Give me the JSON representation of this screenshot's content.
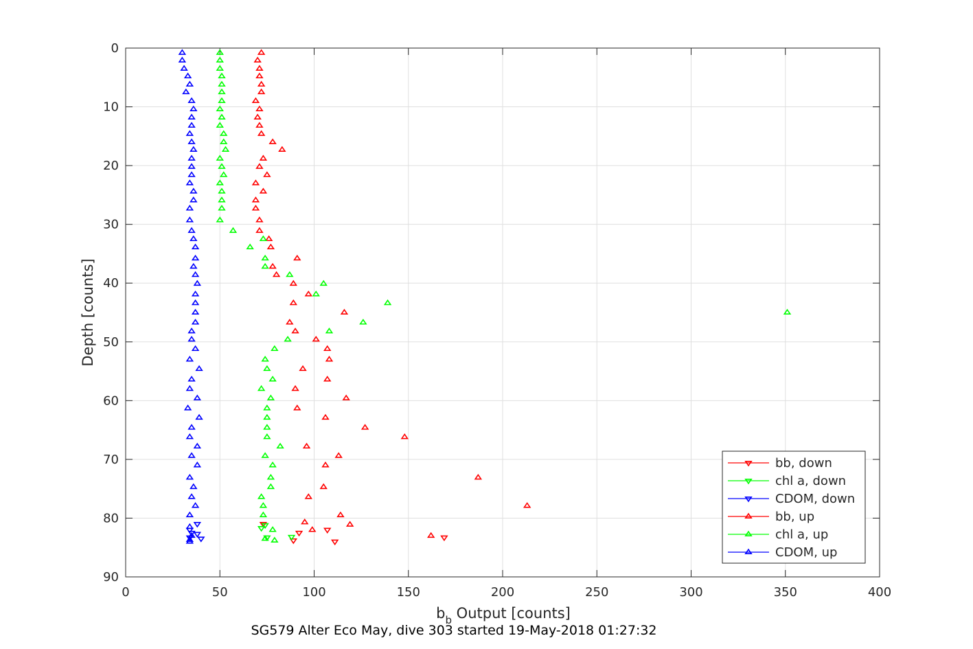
{
  "chart_data": {
    "type": "scatter",
    "title": "SG579 Alter Eco May, dive 303 started 19-May-2018 01:27:32",
    "xlabel_main": "b",
    "xlabel_sub": "b",
    "xlabel_rest": " Output [counts]",
    "ylabel": "Depth [counts]",
    "xlim": [
      0,
      400
    ],
    "ylim": [
      0,
      90
    ],
    "y_reversed": true,
    "x_ticks": [
      0,
      50,
      100,
      150,
      200,
      250,
      300,
      350,
      400
    ],
    "y_ticks": [
      0,
      10,
      20,
      30,
      40,
      50,
      60,
      70,
      80,
      90
    ],
    "grid": true,
    "legend_position": "bottom-right",
    "series": [
      {
        "name": "bb, down",
        "color": "#ff0000",
        "marker": "triangle-down",
        "points": [
          [
            89,
            83.8
          ],
          [
            111,
            84.0
          ],
          [
            107,
            82.0
          ],
          [
            92,
            82.5
          ],
          [
            169,
            83.3
          ],
          [
            73,
            81.0
          ]
        ]
      },
      {
        "name": "chl a, down",
        "color": "#00ff00",
        "marker": "triangle-down",
        "points": [
          [
            72,
            81.7
          ],
          [
            74,
            81.2
          ],
          [
            75,
            83.3
          ],
          [
            88,
            83.2
          ]
        ]
      },
      {
        "name": "CDOM, down",
        "color": "#0000ff",
        "marker": "triangle-down",
        "points": [
          [
            34,
            82.0
          ],
          [
            35,
            82.5
          ],
          [
            38,
            81.0
          ],
          [
            38,
            82.7
          ],
          [
            40,
            83.5
          ],
          [
            34,
            83.3
          ]
        ]
      },
      {
        "name": "bb, up",
        "color": "#ff0000",
        "marker": "triangle-up",
        "points": [
          [
            72,
            0.8
          ],
          [
            70,
            2.1
          ],
          [
            71,
            3.5
          ],
          [
            71,
            4.8
          ],
          [
            72,
            6.2
          ],
          [
            72,
            7.5
          ],
          [
            69,
            9.0
          ],
          [
            71,
            10.4
          ],
          [
            70,
            11.8
          ],
          [
            71,
            13.2
          ],
          [
            72,
            14.6
          ],
          [
            78,
            16.0
          ],
          [
            83,
            17.3
          ],
          [
            73,
            18.8
          ],
          [
            71,
            20.2
          ],
          [
            75,
            21.6
          ],
          [
            69,
            23.0
          ],
          [
            73,
            24.4
          ],
          [
            69,
            25.9
          ],
          [
            69,
            27.3
          ],
          [
            71,
            29.3
          ],
          [
            71,
            31.1
          ],
          [
            76,
            32.5
          ],
          [
            77,
            33.9
          ],
          [
            91,
            35.8
          ],
          [
            78,
            37.2
          ],
          [
            80,
            38.6
          ],
          [
            89,
            40.1
          ],
          [
            97,
            41.9
          ],
          [
            89,
            43.4
          ],
          [
            116,
            45.0
          ],
          [
            87,
            46.7
          ],
          [
            90,
            48.2
          ],
          [
            101,
            49.6
          ],
          [
            107,
            51.2
          ],
          [
            108,
            53.0
          ],
          [
            94,
            54.6
          ],
          [
            107,
            56.4
          ],
          [
            90,
            58.0
          ],
          [
            117,
            59.6
          ],
          [
            91,
            61.3
          ],
          [
            106,
            62.9
          ],
          [
            127,
            64.6
          ],
          [
            148,
            66.2
          ],
          [
            96,
            67.8
          ],
          [
            113,
            69.4
          ],
          [
            106,
            71.0
          ],
          [
            187,
            73.1
          ],
          [
            105,
            74.7
          ],
          [
            97,
            76.4
          ],
          [
            213,
            77.9
          ],
          [
            114,
            79.5
          ],
          [
            119,
            81.1
          ],
          [
            95,
            80.7
          ],
          [
            99,
            82.0
          ],
          [
            162,
            83.0
          ]
        ]
      },
      {
        "name": "chl a, up",
        "color": "#00ff00",
        "marker": "triangle-up",
        "points": [
          [
            50,
            0.8
          ],
          [
            50,
            2.1
          ],
          [
            50,
            3.5
          ],
          [
            51,
            4.8
          ],
          [
            51,
            6.2
          ],
          [
            51,
            7.5
          ],
          [
            51,
            9.0
          ],
          [
            50,
            10.4
          ],
          [
            51,
            11.8
          ],
          [
            50,
            13.2
          ],
          [
            52,
            14.6
          ],
          [
            52,
            16.0
          ],
          [
            53,
            17.3
          ],
          [
            50,
            18.8
          ],
          [
            51,
            20.2
          ],
          [
            52,
            21.6
          ],
          [
            50,
            23.0
          ],
          [
            51,
            24.4
          ],
          [
            51,
            25.9
          ],
          [
            51,
            27.3
          ],
          [
            50,
            29.3
          ],
          [
            57,
            31.1
          ],
          [
            73,
            32.5
          ],
          [
            66,
            33.9
          ],
          [
            74,
            35.8
          ],
          [
            74,
            37.2
          ],
          [
            87,
            38.6
          ],
          [
            105,
            40.1
          ],
          [
            101,
            41.9
          ],
          [
            139,
            43.4
          ],
          [
            351,
            45.0
          ],
          [
            126,
            46.7
          ],
          [
            108,
            48.2
          ],
          [
            86,
            49.6
          ],
          [
            79,
            51.2
          ],
          [
            74,
            53.0
          ],
          [
            75,
            54.6
          ],
          [
            78,
            56.4
          ],
          [
            72,
            58.0
          ],
          [
            77,
            59.6
          ],
          [
            75,
            61.3
          ],
          [
            75,
            62.9
          ],
          [
            75,
            64.6
          ],
          [
            75,
            66.2
          ],
          [
            82,
            67.8
          ],
          [
            74,
            69.4
          ],
          [
            78,
            71.0
          ],
          [
            77,
            73.1
          ],
          [
            77,
            74.7
          ],
          [
            72,
            76.4
          ],
          [
            73,
            77.9
          ],
          [
            73,
            79.5
          ],
          [
            78,
            82.0
          ],
          [
            79,
            83.8
          ],
          [
            74,
            83.5
          ]
        ]
      },
      {
        "name": "CDOM, up",
        "color": "#0000ff",
        "marker": "triangle-up",
        "points": [
          [
            30,
            0.8
          ],
          [
            30,
            2.1
          ],
          [
            31,
            3.5
          ],
          [
            33,
            4.8
          ],
          [
            34,
            6.2
          ],
          [
            32,
            7.5
          ],
          [
            35,
            9.0
          ],
          [
            36,
            10.4
          ],
          [
            35,
            11.8
          ],
          [
            35,
            13.2
          ],
          [
            34,
            14.6
          ],
          [
            35,
            16.0
          ],
          [
            36,
            17.3
          ],
          [
            35,
            18.8
          ],
          [
            35,
            20.2
          ],
          [
            35,
            21.6
          ],
          [
            34,
            23.0
          ],
          [
            36,
            24.4
          ],
          [
            36,
            25.9
          ],
          [
            34,
            27.3
          ],
          [
            34,
            29.3
          ],
          [
            35,
            31.1
          ],
          [
            36,
            32.5
          ],
          [
            37,
            33.9
          ],
          [
            37,
            35.8
          ],
          [
            36,
            37.2
          ],
          [
            37,
            38.6
          ],
          [
            38,
            40.1
          ],
          [
            37,
            41.9
          ],
          [
            37,
            43.4
          ],
          [
            37,
            45.0
          ],
          [
            37,
            46.7
          ],
          [
            35,
            48.2
          ],
          [
            35,
            49.6
          ],
          [
            37,
            51.2
          ],
          [
            34,
            53.0
          ],
          [
            39,
            54.6
          ],
          [
            35,
            56.4
          ],
          [
            34,
            58.0
          ],
          [
            38,
            59.6
          ],
          [
            33,
            61.3
          ],
          [
            39,
            62.9
          ],
          [
            35,
            64.6
          ],
          [
            34,
            66.2
          ],
          [
            38,
            67.8
          ],
          [
            35,
            69.4
          ],
          [
            38,
            71.0
          ],
          [
            34,
            73.1
          ],
          [
            36,
            74.7
          ],
          [
            35,
            76.4
          ],
          [
            37,
            77.9
          ],
          [
            34,
            79.5
          ],
          [
            34,
            81.5
          ],
          [
            35,
            83.0
          ],
          [
            34,
            83.7
          ],
          [
            34,
            84.0
          ]
        ]
      }
    ]
  }
}
